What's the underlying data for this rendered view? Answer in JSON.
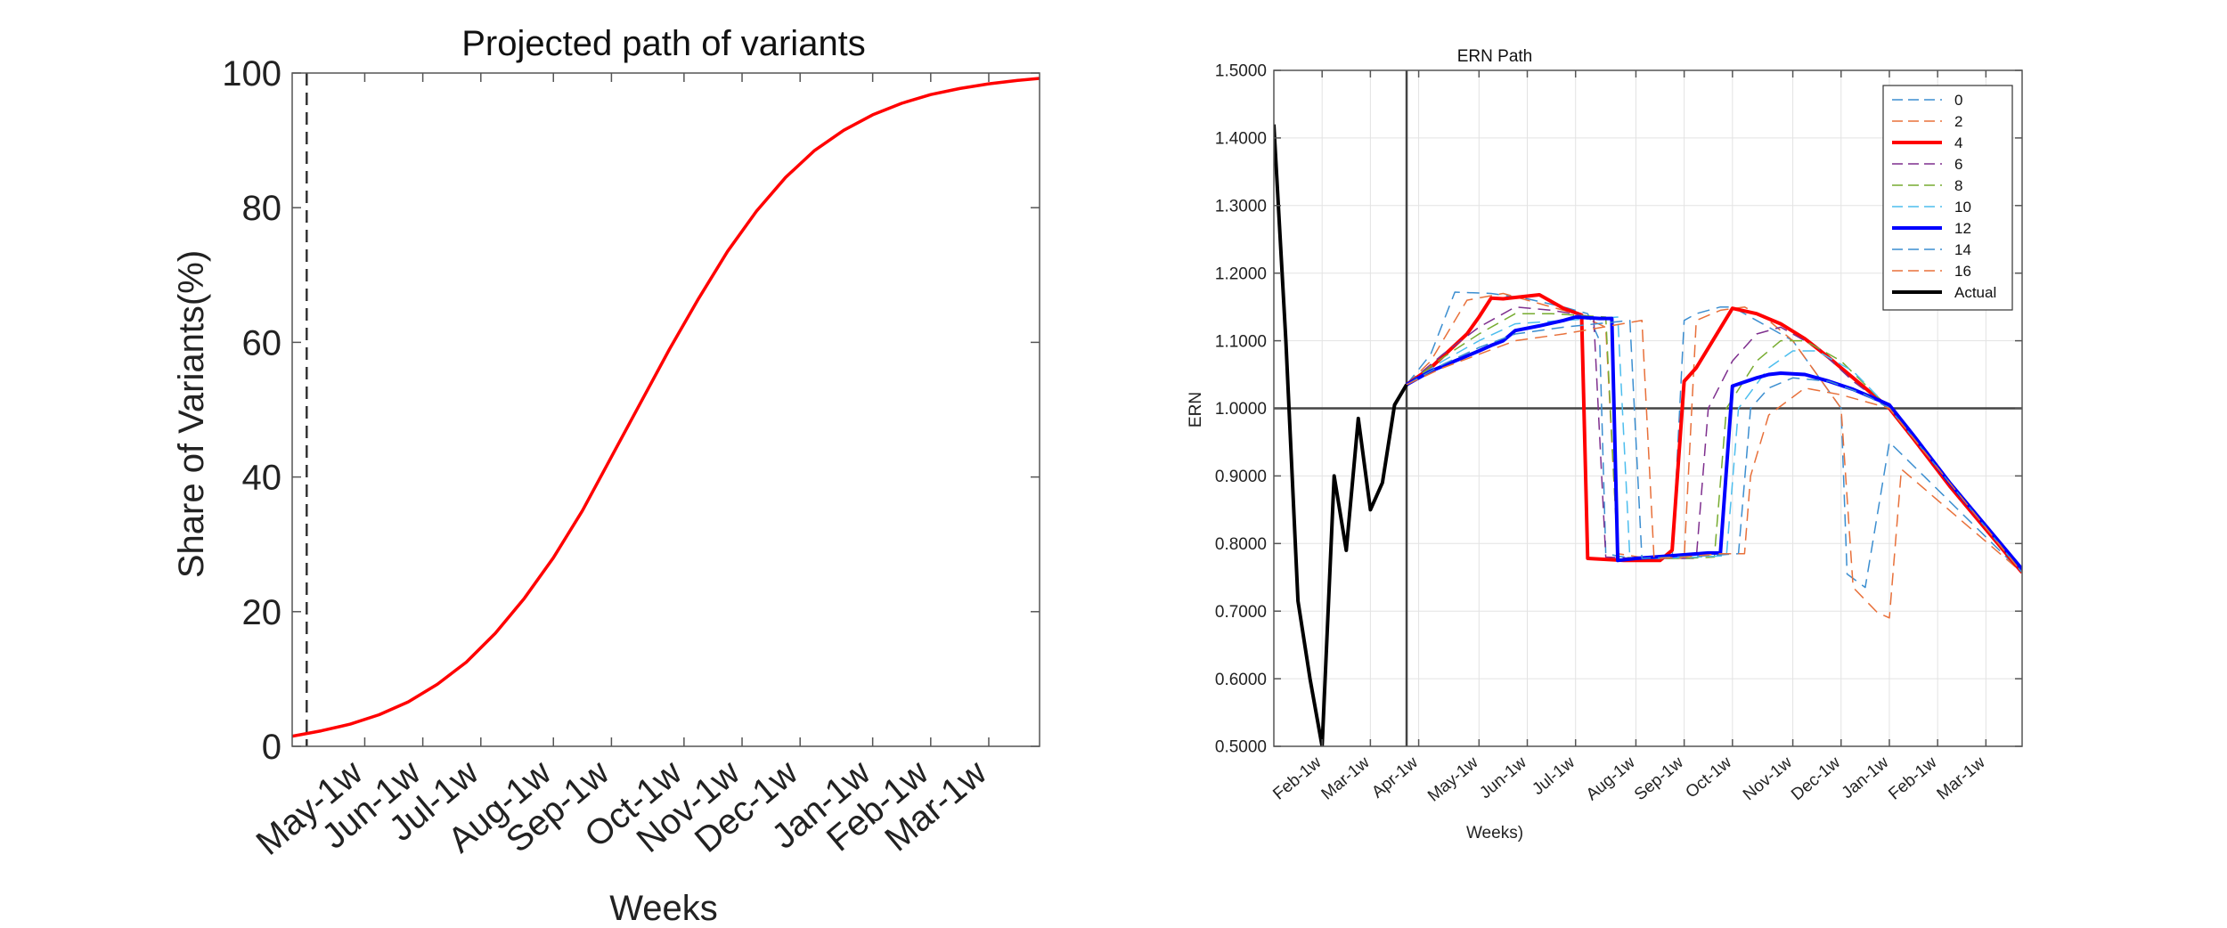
{
  "chart_data": [
    {
      "type": "line",
      "title": "Projected path of variants",
      "xlabel": "Weeks",
      "ylabel": "Share of Variants(%)",
      "ylim": [
        0,
        100
      ],
      "yticks": [
        0,
        20,
        40,
        60,
        80,
        100
      ],
      "grid": false,
      "xrange": [
        0,
        51.5
      ],
      "xticks": [
        {
          "label": "May-1w",
          "x": 5
        },
        {
          "label": "Jun-1w",
          "x": 9
        },
        {
          "label": "Jul-1w",
          "x": 13
        },
        {
          "label": "Aug-1w",
          "x": 18
        },
        {
          "label": "Sep-1w",
          "x": 22
        },
        {
          "label": "Oct-1w",
          "x": 27
        },
        {
          "label": "Nov-1w",
          "x": 31
        },
        {
          "label": "Dec-1w",
          "x": 35
        },
        {
          "label": "Jan-1w",
          "x": 40
        },
        {
          "label": "Feb-1w",
          "x": 44
        },
        {
          "label": "Mar-1w",
          "x": 48
        }
      ],
      "vline": {
        "x": 1,
        "style": "dashed",
        "color": "#333333"
      },
      "series": [
        {
          "color": "#ff0000",
          "x": [
            0,
            2,
            4,
            6,
            8,
            10,
            12,
            14,
            16,
            18,
            20,
            22,
            24,
            26,
            28,
            30,
            32,
            34,
            36,
            38,
            40,
            42,
            44,
            46,
            48,
            50,
            51.5
          ],
          "y": [
            1.5,
            2.3,
            3.3,
            4.7,
            6.6,
            9.2,
            12.5,
            16.8,
            22,
            28,
            35,
            43,
            51,
            59,
            66.5,
            73.5,
            79.5,
            84.5,
            88.5,
            91.5,
            93.8,
            95.5,
            96.8,
            97.7,
            98.4,
            98.9,
            99.2
          ]
        }
      ]
    },
    {
      "type": "line",
      "title": "ERN Path",
      "xlabel": "Weeks)",
      "ylabel": "ERN",
      "ylim": [
        0.5,
        1.5
      ],
      "yticks": [
        "0.5000",
        "0.6000",
        "0.7000",
        "0.8000",
        "0.9000",
        "1.0000",
        "1.1000",
        "1.2000",
        "1.3000",
        "1.4000",
        "1.5000"
      ],
      "grid": true,
      "legend": "top-right",
      "xrange": [
        0,
        62
      ],
      "xticks": [
        {
          "label": "Feb-1w",
          "x": 4
        },
        {
          "label": "Mar-1w",
          "x": 8
        },
        {
          "label": "Apr-1w",
          "x": 12
        },
        {
          "label": "May-1w",
          "x": 17
        },
        {
          "label": "Jun-1w",
          "x": 21
        },
        {
          "label": "Jul-1w",
          "x": 25
        },
        {
          "label": "Aug-1w",
          "x": 30
        },
        {
          "label": "Sep-1w",
          "x": 34
        },
        {
          "label": "Oct-1w",
          "x": 38
        },
        {
          "label": "Nov-1w",
          "x": 43
        },
        {
          "label": "Dec-1w",
          "x": 47
        },
        {
          "label": "Jan-1w",
          "x": 51
        },
        {
          "label": "Feb-1w",
          "x": 55
        },
        {
          "label": "Mar-1w",
          "x": 59
        }
      ],
      "hline": {
        "y": 1.0,
        "color": "#444444"
      },
      "vline": {
        "x": 11,
        "color": "#444444"
      },
      "series": [
        {
          "name": "0",
          "color": "#3b8ed0",
          "style": "dashed",
          "width": 1.5,
          "x": [
            11,
            13,
            15,
            18,
            21,
            24,
            26,
            27,
            27.5,
            29,
            31,
            32,
            33,
            34,
            35,
            37,
            38,
            40,
            43,
            45,
            47,
            47.5,
            49,
            51,
            62
          ],
          "y": [
            1.035,
            1.08,
            1.172,
            1.17,
            1.162,
            1.15,
            1.14,
            1.1,
            0.785,
            0.78,
            0.778,
            0.778,
            0.778,
            1.13,
            1.14,
            1.15,
            1.15,
            1.13,
            1.1,
            1.05,
            1.0,
            0.755,
            0.735,
            0.95,
            0.757
          ]
        },
        {
          "name": "2",
          "color": "#e8703a",
          "style": "dashed",
          "width": 1.5,
          "x": [
            11,
            13,
            16,
            19,
            22,
            25,
            27.5,
            28.5,
            31,
            33,
            34,
            35,
            37,
            39,
            41,
            43,
            47,
            48,
            50,
            51,
            52,
            62
          ],
          "y": [
            1.035,
            1.07,
            1.16,
            1.17,
            1.155,
            1.14,
            1.12,
            0.785,
            0.778,
            0.778,
            0.778,
            1.13,
            1.145,
            1.15,
            1.13,
            1.1,
            1.0,
            0.735,
            0.698,
            0.69,
            0.91,
            0.757
          ]
        },
        {
          "name": "4",
          "color": "#ff0000",
          "style": "solid",
          "width": 4,
          "x": [
            11,
            13,
            16,
            17,
            18,
            19,
            22,
            24,
            25.5,
            26,
            29,
            32,
            33,
            34,
            35,
            38,
            40,
            42,
            44,
            46,
            48,
            50,
            51,
            53,
            56,
            62
          ],
          "y": [
            1.035,
            1.06,
            1.11,
            1.135,
            1.163,
            1.162,
            1.168,
            1.148,
            1.138,
            0.778,
            0.775,
            0.775,
            0.79,
            1.04,
            1.06,
            1.148,
            1.14,
            1.125,
            1.103,
            1.075,
            1.045,
            1.015,
            1.0,
            0.955,
            0.885,
            0.757
          ]
        },
        {
          "name": "6",
          "color": "#7e2f8e",
          "style": "dashed",
          "width": 1.5,
          "x": [
            11,
            14,
            17,
            20,
            23,
            26.5,
            27.5,
            30,
            33,
            35,
            36,
            38,
            40,
            42,
            45,
            48,
            51,
            62
          ],
          "y": [
            1.035,
            1.08,
            1.12,
            1.15,
            1.145,
            1.135,
            0.78,
            0.778,
            0.778,
            0.778,
            1.0,
            1.07,
            1.11,
            1.12,
            1.09,
            1.04,
            1.0,
            0.757
          ]
        },
        {
          "name": "8",
          "color": "#77ac30",
          "style": "dashed",
          "width": 1.5,
          "x": [
            11,
            14,
            17,
            20,
            23,
            27.5,
            28.5,
            31,
            34,
            36.5,
            37.5,
            40,
            42,
            44,
            47,
            51,
            62
          ],
          "y": [
            1.035,
            1.075,
            1.11,
            1.14,
            1.14,
            1.135,
            0.78,
            0.778,
            0.778,
            0.78,
            1.0,
            1.07,
            1.1,
            1.1,
            1.07,
            1.0,
            0.757
          ]
        },
        {
          "name": "10",
          "color": "#4dbeee",
          "style": "dashed",
          "width": 1.5,
          "x": [
            11,
            14,
            17,
            20,
            24,
            28.5,
            29.5,
            32,
            35,
            37.5,
            38.5,
            41,
            43,
            45,
            48,
            51,
            62
          ],
          "y": [
            1.035,
            1.07,
            1.1,
            1.125,
            1.13,
            1.135,
            0.778,
            0.778,
            0.78,
            0.782,
            1.0,
            1.06,
            1.085,
            1.085,
            1.055,
            1.0,
            0.757
          ]
        },
        {
          "name": "12",
          "color": "#0000ff",
          "style": "solid",
          "width": 4,
          "x": [
            11,
            13,
            15,
            17,
            18,
            19,
            20,
            22,
            24,
            25,
            27,
            28,
            28.5,
            30,
            33,
            36,
            37,
            38,
            40,
            41,
            42,
            44,
            46,
            48,
            50,
            51,
            53,
            56,
            62
          ],
          "y": [
            1.035,
            1.055,
            1.07,
            1.085,
            1.093,
            1.1,
            1.115,
            1.122,
            1.13,
            1.135,
            1.133,
            1.133,
            0.775,
            0.778,
            0.782,
            0.786,
            0.786,
            1.033,
            1.045,
            1.05,
            1.052,
            1.05,
            1.04,
            1.028,
            1.013,
            1.005,
            0.96,
            0.89,
            0.762
          ]
        },
        {
          "name": "14",
          "color": "#3b8ed0",
          "style": "dashed",
          "width": 1.5,
          "x": [
            11,
            14,
            17,
            20,
            24,
            29.5,
            30.5,
            33,
            36,
            38.5,
            39.5,
            41,
            43,
            46,
            49,
            51,
            62
          ],
          "y": [
            1.035,
            1.065,
            1.09,
            1.11,
            1.12,
            1.13,
            0.778,
            0.78,
            0.782,
            0.785,
            1.0,
            1.03,
            1.045,
            1.04,
            1.02,
            1.0,
            0.757
          ]
        },
        {
          "name": "16",
          "color": "#e8703a",
          "style": "dashed",
          "width": 1.5,
          "x": [
            11,
            14,
            17,
            20,
            24,
            30.5,
            31.5,
            34,
            37,
            39,
            39.5,
            41,
            44,
            47,
            49,
            51,
            62
          ],
          "y": [
            1.035,
            1.06,
            1.08,
            1.1,
            1.11,
            1.13,
            0.778,
            0.78,
            0.785,
            0.785,
            0.9,
            0.99,
            1.03,
            1.02,
            1.01,
            1.0,
            0.757
          ]
        },
        {
          "name": "Actual",
          "color": "#000000",
          "style": "solid",
          "width": 4,
          "x": [
            0,
            1,
            2,
            3,
            4,
            5,
            6,
            7,
            8,
            9,
            10,
            11
          ],
          "y": [
            1.42,
            1.1,
            0.715,
            0.6,
            0.5,
            0.9,
            0.79,
            0.985,
            0.85,
            0.89,
            1.005,
            1.035
          ]
        }
      ]
    }
  ]
}
